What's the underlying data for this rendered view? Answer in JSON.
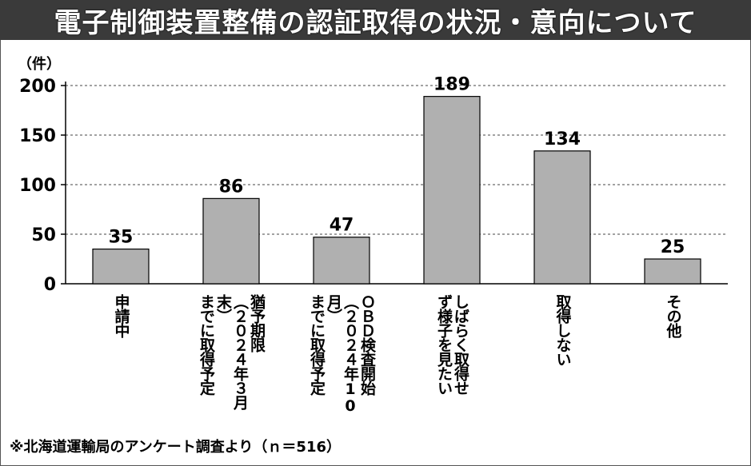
{
  "title": "電子制御装置整備の認証取得の状況・意向について",
  "unit": "（件）",
  "footnote": "※北海道運輸局のアンケート調査より（ｎ＝516）",
  "chart_data": {
    "type": "bar",
    "categories": [
      [
        "申請中"
      ],
      [
        "猶予期限",
        "（２０２４年３月末）",
        "までに取得予定"
      ],
      [
        "ＯＢＤ検査開始",
        "（２０２４年10月）",
        "までに取得予定"
      ],
      [
        "しばらく取得せ",
        "ず様子を見たい"
      ],
      [
        "取得しない"
      ],
      [
        "その他"
      ]
    ],
    "values": [
      35,
      86,
      47,
      189,
      134,
      25
    ],
    "data_labels": [
      "35",
      "86",
      "47",
      "189",
      "134",
      "25"
    ],
    "yticks": [
      "0",
      "50",
      "100",
      "150",
      "200"
    ],
    "ylim": [
      0,
      200
    ],
    "grid": true,
    "bar_color": "#b0b0b0",
    "bar_stroke": "#000000"
  }
}
